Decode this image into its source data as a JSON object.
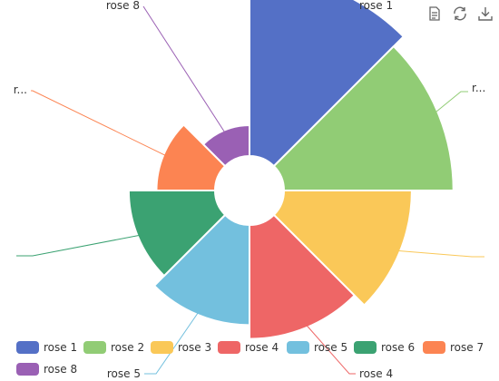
{
  "chart_data": {
    "type": "nightingale-rose",
    "roseType": "area",
    "series": [
      {
        "name": "rose 1",
        "value": 40,
        "color": "#5470c6",
        "label": "rose 1"
      },
      {
        "name": "rose 2",
        "value": 38,
        "color": "#91cc75",
        "label": "r..."
      },
      {
        "name": "rose 3",
        "value": 32,
        "color": "#fac858",
        "label": ""
      },
      {
        "name": "rose 4",
        "value": 30,
        "color": "#ee6666",
        "label": "rose 4"
      },
      {
        "name": "rose 5",
        "value": 28,
        "color": "#73c0de",
        "label": "rose 5"
      },
      {
        "name": "rose 6",
        "value": 26,
        "color": "#3ba272",
        "label": ""
      },
      {
        "name": "rose 7",
        "value": 22,
        "color": "#fc8452",
        "label": "r..."
      },
      {
        "name": "rose 8",
        "value": 18,
        "color": "#9a60b4",
        "label": "rose 8"
      }
    ],
    "legend": [
      "rose 1",
      "rose 2",
      "rose 3",
      "rose 4",
      "rose 5",
      "rose 6",
      "rose 7",
      "rose 8"
    ],
    "legend_position": "bottom-left"
  },
  "toolbox": {
    "icons": [
      "data-view-icon",
      "restore-icon",
      "save-image-icon"
    ]
  }
}
